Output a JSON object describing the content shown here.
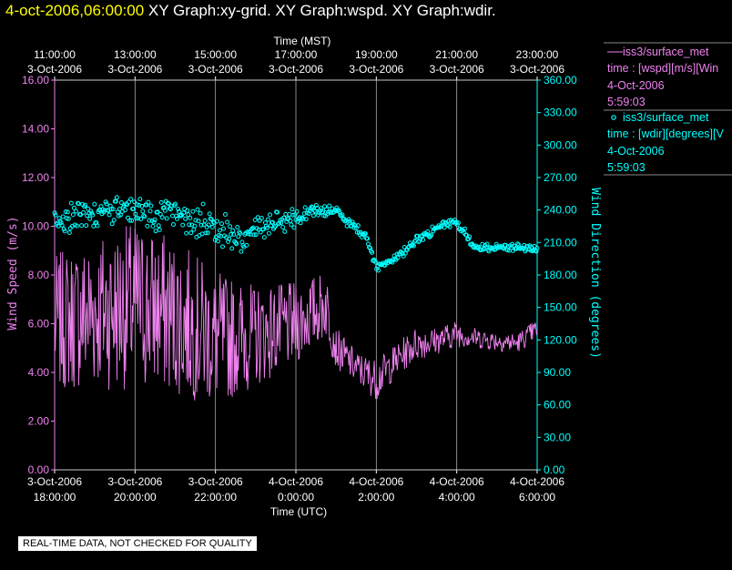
{
  "header": {
    "timestamp": "4-oct-2006,06:00:00",
    "graph_titles": "XY Graph:xy-grid.  XY Graph:wspd.  XY Graph:wdir."
  },
  "quality_note": "REAL-TIME DATA, NOT CHECKED FOR QUALITY",
  "colors": {
    "background": "#000000",
    "wspd": "#ee82ee",
    "wdir": "#00ffff",
    "grid": "#aaaaaa",
    "axis_text": "#ffffff",
    "timestamp": "#ffff00"
  },
  "legend": [
    {
      "marker": "line",
      "name": "iss3/surface_met",
      "variable": "time : [wspd][m/s][Win",
      "date": "4-Oct-2006",
      "time": "5:59:03"
    },
    {
      "marker": "circle",
      "name": "iss3/surface_met",
      "variable": "time : [wdir][degrees][V",
      "date": "4-Oct-2006",
      "time": "5:59:03"
    }
  ],
  "chart_data": {
    "type": "line",
    "grid": true,
    "x_top": {
      "label": "Time (MST)",
      "ticks": [
        {
          "time": "11:00:00",
          "date": "3-Oct-2006"
        },
        {
          "time": "13:00:00",
          "date": "3-Oct-2006"
        },
        {
          "time": "15:00:00",
          "date": "3-Oct-2006"
        },
        {
          "time": "17:00:00",
          "date": "3-Oct-2006"
        },
        {
          "time": "19:00:00",
          "date": "3-Oct-2006"
        },
        {
          "time": "21:00:00",
          "date": "3-Oct-2006"
        },
        {
          "time": "23:00:00",
          "date": "3-Oct-2006"
        }
      ]
    },
    "x_bottom": {
      "label": "Time (UTC)",
      "range": [
        "3-Oct-2006 18:00:00",
        "4-Oct-2006 06:00:00"
      ],
      "ticks": [
        {
          "date": "3-Oct-2006",
          "time": "18:00:00"
        },
        {
          "date": "3-Oct-2006",
          "time": "20:00:00"
        },
        {
          "date": "3-Oct-2006",
          "time": "22:00:00"
        },
        {
          "date": "4-Oct-2006",
          "time": "0:00:00"
        },
        {
          "date": "4-Oct-2006",
          "time": "2:00:00"
        },
        {
          "date": "4-Oct-2006",
          "time": "4:00:00"
        },
        {
          "date": "4-Oct-2006",
          "time": "6:00:00"
        }
      ]
    },
    "y_left": {
      "label": "Wind Speed (m/s)",
      "range": [
        0,
        16
      ],
      "ticks": [
        "0.00",
        "2.00",
        "4.00",
        "6.00",
        "8.00",
        "10.00",
        "12.00",
        "14.00",
        "16.00"
      ]
    },
    "y_right": {
      "label": "Wind Direction (degrees)",
      "range": [
        0,
        360
      ],
      "ticks": [
        "0.00",
        "30.00",
        "60.00",
        "90.00",
        "120.00",
        "150.00",
        "180.00",
        "210.00",
        "240.00",
        "270.00",
        "300.00",
        "330.00",
        "360.00"
      ]
    },
    "series": [
      {
        "variable": "wspd",
        "axis": "left",
        "style": "line",
        "time_utc": [
          "3-Oct-2006 18:00",
          "3-Oct-2006 19:00",
          "3-Oct-2006 20:00",
          "3-Oct-2006 21:00",
          "3-Oct-2006 22:00",
          "3-Oct-2006 23:00",
          "4-Oct-2006 00:00",
          "4-Oct-2006 00:45",
          "4-Oct-2006 01:00",
          "4-Oct-2006 01:30",
          "4-Oct-2006 02:00",
          "4-Oct-2006 02:30",
          "4-Oct-2006 03:00",
          "4-Oct-2006 03:30",
          "4-Oct-2006 04:00",
          "4-Oct-2006 04:30",
          "4-Oct-2006 05:00",
          "4-Oct-2006 05:30",
          "4-Oct-2006 06:00"
        ],
        "mean": [
          6.0,
          6.5,
          6.8,
          6.3,
          5.4,
          5.5,
          6.0,
          6.8,
          5.0,
          4.2,
          3.7,
          4.5,
          5.2,
          5.3,
          5.6,
          5.4,
          5.3,
          5.2,
          5.8
        ],
        "amplitude": [
          2.0,
          2.3,
          2.5,
          2.3,
          2.0,
          1.5,
          1.2,
          1.0,
          0.6,
          0.5,
          0.6,
          0.5,
          0.5,
          0.4,
          0.4,
          0.3,
          0.3,
          0.3,
          0.3
        ],
        "min": 2.1,
        "max": 10.0
      },
      {
        "variable": "wdir",
        "axis": "right",
        "style": "circle markers",
        "time_utc": [
          "3-Oct-2006 18:00",
          "3-Oct-2006 19:00",
          "3-Oct-2006 20:00",
          "3-Oct-2006 21:00",
          "3-Oct-2006 22:00",
          "3-Oct-2006 22:30",
          "3-Oct-2006 23:00",
          "4-Oct-2006 00:00",
          "4-Oct-2006 00:30",
          "4-Oct-2006 01:00",
          "4-Oct-2006 01:45",
          "4-Oct-2006 02:00",
          "4-Oct-2006 02:30",
          "4-Oct-2006 03:00",
          "4-Oct-2006 03:45",
          "4-Oct-2006 04:00",
          "4-Oct-2006 04:30",
          "4-Oct-2006 05:00",
          "4-Oct-2006 06:00"
        ],
        "mean": [
          230,
          238,
          240,
          235,
          225,
          215,
          222,
          232,
          240,
          238,
          215,
          188,
          195,
          212,
          228,
          228,
          205,
          205,
          205
        ],
        "spread": [
          12,
          12,
          14,
          14,
          15,
          15,
          12,
          8,
          6,
          4,
          4,
          4,
          4,
          4,
          3,
          3,
          4,
          4,
          3
        ],
        "min": 182,
        "max": 280
      }
    ]
  }
}
